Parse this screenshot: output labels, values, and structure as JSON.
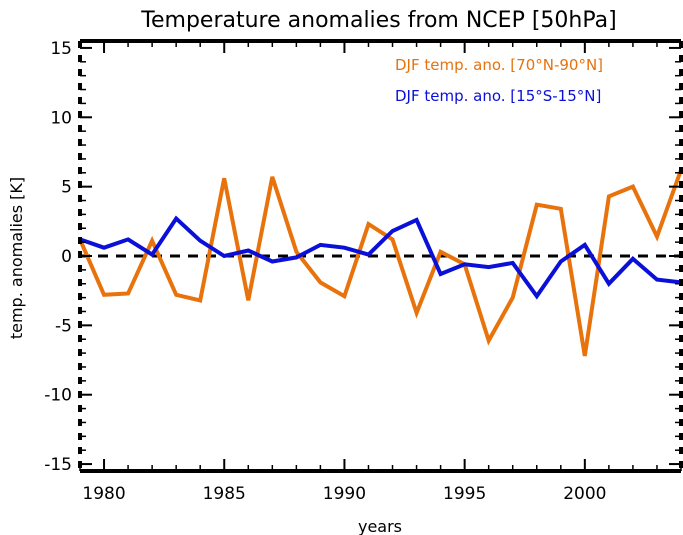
{
  "chart_data": {
    "type": "line",
    "title": "Temperature anomalies from NCEP [50hPa]",
    "xlabel": "years",
    "ylabel": "temp. anomalies [K]",
    "xlim": [
      1979,
      2004
    ],
    "ylim": [
      -15.5,
      15.5
    ],
    "xticks": [
      1980,
      1985,
      1990,
      1995,
      2000
    ],
    "yticks": [
      -15,
      -10,
      -5,
      0,
      5,
      10,
      15
    ],
    "grid": false,
    "legend_position": "top-right",
    "zero_line": {
      "y": 0,
      "style": "dashed",
      "color": "#000000"
    },
    "x": [
      1979,
      1980,
      1981,
      1982,
      1983,
      1984,
      1985,
      1986,
      1987,
      1988,
      1989,
      1990,
      1991,
      1992,
      1993,
      1994,
      1995,
      1996,
      1997,
      1998,
      1999,
      2000,
      2001,
      2002,
      2003,
      2004
    ],
    "series": [
      {
        "name": "DJF temp. ano. [70°N-90°N]",
        "color": "#e8720c",
        "values": [
          1.2,
          -2.8,
          -2.7,
          1.1,
          -2.8,
          -3.2,
          5.6,
          -3.2,
          5.7,
          0.3,
          -1.9,
          -2.9,
          2.3,
          1.2,
          -4.1,
          0.3,
          -0.6,
          -6.1,
          -3.0,
          3.7,
          3.4,
          -7.2,
          4.3,
          5.0,
          1.4,
          6.2
        ]
      },
      {
        "name": "DJF temp. ano. [15°S-15°N]",
        "color": "#0a10d8",
        "values": [
          1.2,
          0.6,
          1.2,
          0.1,
          2.7,
          1.1,
          0.0,
          0.4,
          -0.4,
          -0.1,
          0.8,
          0.6,
          0.1,
          1.8,
          2.6,
          -1.3,
          -0.6,
          -0.8,
          -0.5,
          -2.9,
          -0.4,
          0.8,
          -2.0,
          -0.2,
          -1.7,
          -1.9
        ]
      }
    ]
  }
}
